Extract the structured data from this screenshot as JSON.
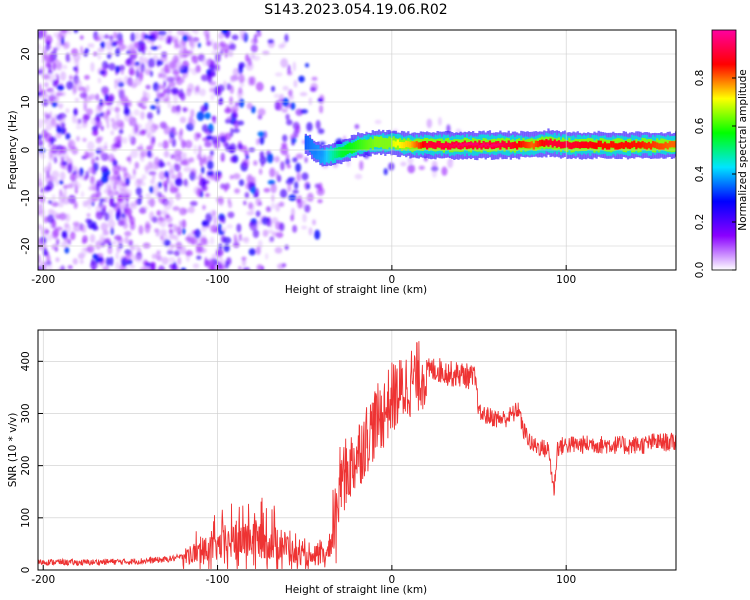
{
  "title": "S143.2023.054.19.06.R02",
  "chart_data": [
    {
      "type": "heatmap",
      "xlabel": "Height of straight line (km)",
      "ylabel": "Frequency (Hz)",
      "xlim": [
        -203,
        163
      ],
      "ylim": [
        -25,
        25
      ],
      "x_ticks": [
        -200,
        -100,
        0,
        100
      ],
      "y_ticks": [
        -20,
        -10,
        0,
        10,
        20
      ],
      "grid": true,
      "colorbar": {
        "label": "Normalized spectral amplitude",
        "range": [
          0,
          1
        ],
        "ticks": [
          0.0,
          0.2,
          0.4,
          0.6,
          0.8
        ],
        "colors": [
          "#ffffff",
          "#8a00ff",
          "#0000ff",
          "#00e5ff",
          "#00ff00",
          "#ffff00",
          "#ff0000",
          "#ff00a0"
        ]
      },
      "ridge": {
        "description_free_x": [
          -50,
          -40,
          -30,
          -20,
          -10,
          0,
          10,
          20,
          40,
          60,
          80,
          90,
          100,
          120,
          140,
          160
        ],
        "frequency_hz": [
          1.5,
          -1.5,
          -0.5,
          1.0,
          1.5,
          1.5,
          1.0,
          1.0,
          1.0,
          1.0,
          1.0,
          1.5,
          1.0,
          1.0,
          1.0,
          1.0
        ],
        "peak_amplitude": [
          0.35,
          0.4,
          0.55,
          0.6,
          0.65,
          0.7,
          0.75,
          0.9,
          0.95,
          0.95,
          0.8,
          0.9,
          0.9,
          0.85,
          0.85,
          0.8
        ]
      }
    },
    {
      "type": "line",
      "xlabel": "Height of straight line (km)",
      "ylabel": "SNR (10 * v/v)",
      "xlim": [
        -203,
        163
      ],
      "ylim": [
        0,
        460
      ],
      "x_ticks": [
        -200,
        -100,
        0,
        100
      ],
      "y_ticks": [
        0,
        100,
        200,
        300,
        400
      ],
      "grid": true,
      "series": [
        {
          "color": "#ee3333",
          "x": [
            -203,
            -190,
            -180,
            -170,
            -160,
            -150,
            -140,
            -130,
            -120,
            -110,
            -100,
            -90,
            -80,
            -70,
            -60,
            -55,
            -50,
            -45,
            -40,
            -35,
            -32,
            -30,
            -25,
            -20,
            -15,
            -10,
            -5,
            0,
            5,
            10,
            15,
            20,
            25,
            30,
            35,
            40,
            45,
            48,
            50,
            55,
            60,
            65,
            70,
            73,
            75,
            78,
            80,
            85,
            90,
            93,
            95,
            100,
            105,
            110,
            115,
            120,
            125,
            130,
            135,
            140,
            145,
            150,
            155,
            160,
            163
          ],
          "y": [
            15,
            15,
            14,
            15,
            16,
            16,
            18,
            20,
            25,
            35,
            45,
            55,
            60,
            55,
            45,
            30,
            25,
            20,
            25,
            30,
            120,
            170,
            190,
            220,
            250,
            280,
            300,
            330,
            340,
            360,
            370,
            380,
            385,
            380,
            375,
            375,
            370,
            365,
            300,
            295,
            290,
            290,
            300,
            310,
            270,
            255,
            240,
            235,
            230,
            150,
            235,
            240,
            240,
            240,
            242,
            240,
            240,
            240,
            238,
            240,
            240,
            245,
            245,
            245,
            245
          ]
        }
      ]
    }
  ]
}
